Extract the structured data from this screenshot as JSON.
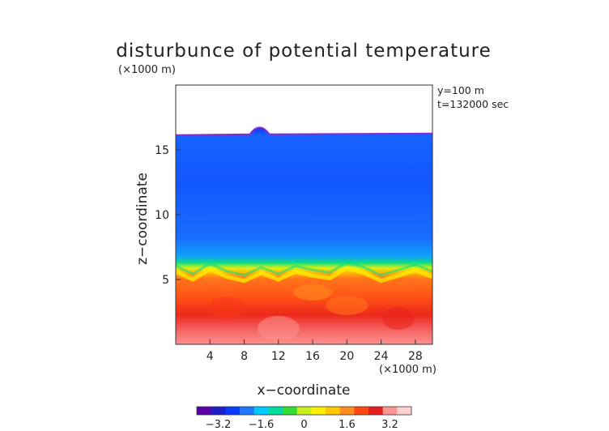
{
  "chart_data": {
    "type": "heatmap",
    "title": "disturbunce of potential temperature",
    "ylabel": "z−coordinate",
    "xlabel": "x−coordinate",
    "y_unit": "(×1000 m)",
    "x_unit": "(×1000 m)",
    "annotations": [
      "y=100 m",
      "t=132000 sec"
    ],
    "x_range": [
      0,
      30
    ],
    "y_range": [
      0,
      20
    ],
    "x_ticks": [
      4,
      8,
      12,
      16,
      20,
      24,
      28
    ],
    "x_tick_labels": [
      "4",
      "8",
      "12",
      "16",
      "20",
      "24",
      "28"
    ],
    "y_ticks": [
      5,
      10,
      15
    ],
    "y_tick_labels": [
      "5",
      "10",
      "15"
    ],
    "field": {
      "top_of_data_z": 16.2,
      "bump": {
        "x": 9.8,
        "height": 0.35
      },
      "lower_boundary_z": 5.2,
      "upper_layer_value": -2.6,
      "near_surface_value": 3.4
    },
    "colorbar": {
      "range": [
        -4.0,
        4.0
      ],
      "ticks": [
        -3.2,
        -1.6,
        0,
        1.6,
        3.2
      ],
      "tick_labels": [
        "−3.2",
        "−1.6",
        "0",
        "1.6",
        "3.2"
      ],
      "colors": [
        "#5a00a8",
        "#1e1ec8",
        "#0a3cff",
        "#1e78ff",
        "#00c8ff",
        "#00dca0",
        "#33dd33",
        "#c8f01e",
        "#fff000",
        "#ffc800",
        "#ff8c1e",
        "#ff4614",
        "#e61e1e",
        "#ff9696",
        "#ffd2d2"
      ]
    }
  }
}
